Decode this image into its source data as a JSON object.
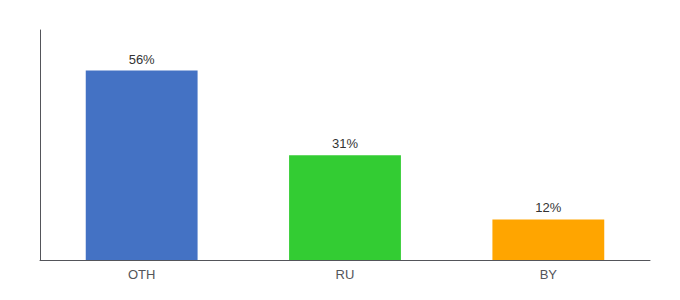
{
  "chart_data": {
    "type": "bar",
    "categories": [
      "OTH",
      "RU",
      "BY"
    ],
    "values": [
      56,
      31,
      12
    ],
    "value_labels": [
      "56%",
      "31%",
      "12%"
    ],
    "colors": [
      "#4472C4",
      "#33CC33",
      "#FFA500"
    ],
    "ylim": [
      0,
      68
    ],
    "tick_labels": "x",
    "data_labels": true,
    "grid": false
  }
}
